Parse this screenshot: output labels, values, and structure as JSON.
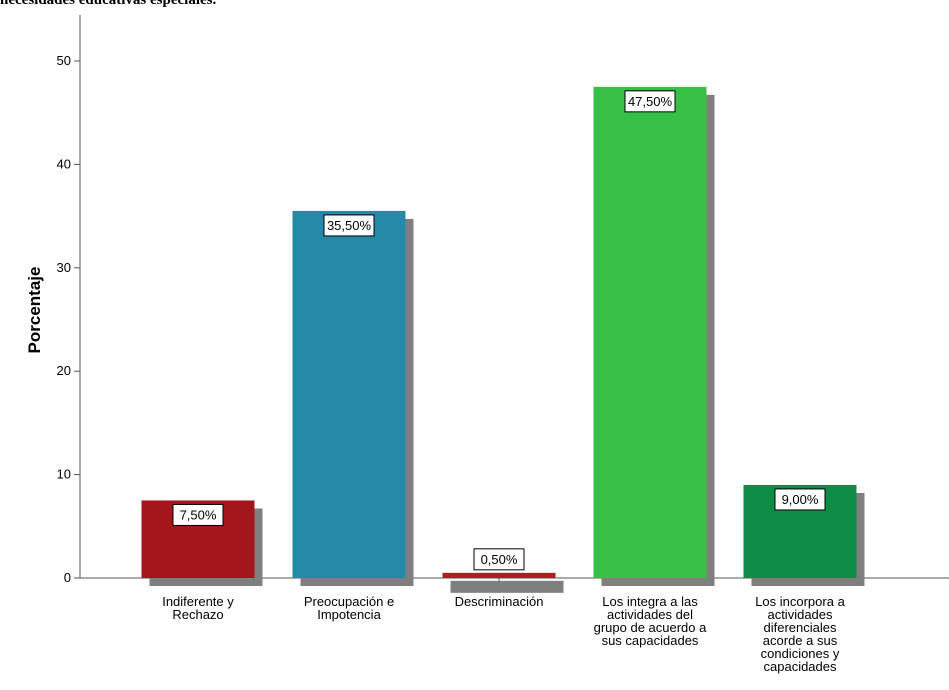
{
  "page_title": "necesidades educativas especiales.",
  "chart_data": {
    "type": "bar",
    "title": "necesidades educativas especiales.",
    "xlabel": "",
    "ylabel": "Porcentaje",
    "ylim": [
      0,
      53
    ],
    "yticks": [
      0,
      10,
      20,
      30,
      40,
      50
    ],
    "categories": [
      "Indiferente y\nRechazo",
      "Preocupación e\nImpotencia",
      "Descriminación",
      "Los integra a las\nactividades del\ngrupo de acuerdo a\nsus capacidades",
      "Los incorpora a\nactividades\ndiferenciales\nacorde a sus\ncondiciones y\ncapacidades"
    ],
    "values": [
      7.5,
      35.5,
      0.5,
      47.5,
      9.0
    ],
    "data_labels": [
      "7,50%",
      "35,50%",
      "0,50%",
      "47,50%",
      "9,00%"
    ],
    "colors": [
      "#a3161c",
      "#248aa8",
      "#b01c22",
      "#36c045",
      "#0f8c45"
    ],
    "shadow_color": "#7f7f7f",
    "grid": false,
    "legend": "none"
  }
}
